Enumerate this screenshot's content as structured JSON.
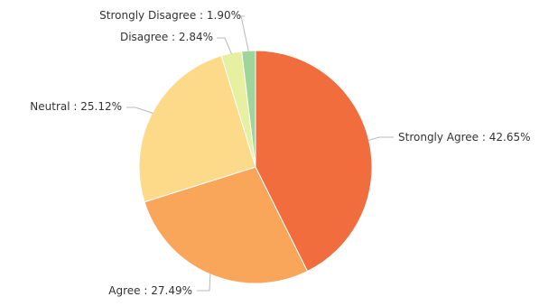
{
  "chart_data": {
    "type": "pie",
    "title": "",
    "slices": [
      {
        "label": "Strongly Agree",
        "value": 42.65,
        "display": "Strongly Agree : 42.65%",
        "color": "#f26d3d"
      },
      {
        "label": "Agree",
        "value": 27.49,
        "display": "Agree : 27.49%",
        "color": "#f9a65a"
      },
      {
        "label": "Neutral",
        "value": 25.12,
        "display": "Neutral : 25.12%",
        "color": "#fdd98a"
      },
      {
        "label": "Disagree",
        "value": 2.84,
        "display": "Disagree : 2.84%",
        "color": "#e6f0a0"
      },
      {
        "label": "Strongly Disagree",
        "value": 1.9,
        "display": "Strongly Disagree : 1.90%",
        "color": "#9fd59a"
      }
    ]
  }
}
